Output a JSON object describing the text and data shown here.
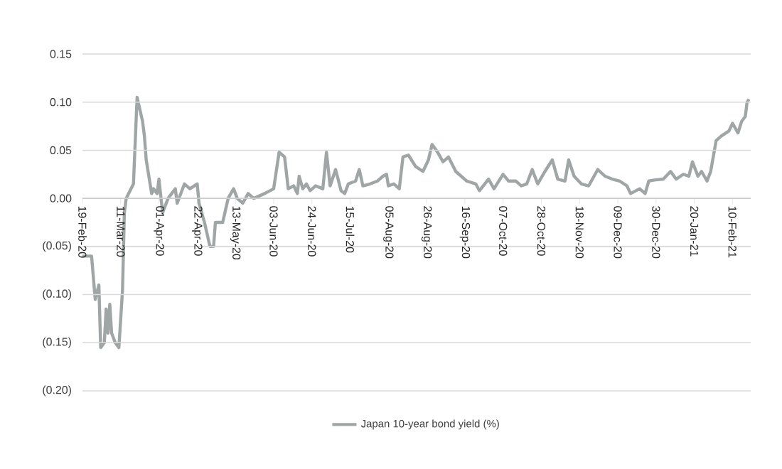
{
  "chart_data": {
    "type": "line",
    "x": [
      "2020-02-19",
      "2020-02-24",
      "2020-02-26",
      "2020-02-28",
      "2020-02-29",
      "2020-03-02",
      "2020-03-03",
      "2020-03-04",
      "2020-03-05",
      "2020-03-06",
      "2020-03-08",
      "2020-03-10",
      "2020-03-12",
      "2020-03-13",
      "2020-03-14",
      "2020-03-18",
      "2020-03-20",
      "2020-03-23",
      "2020-03-24",
      "2020-03-25",
      "2020-03-28",
      "2020-03-29",
      "2020-03-31",
      "2020-04-01",
      "2020-04-03",
      "2020-04-06",
      "2020-04-10",
      "2020-04-11",
      "2020-04-15",
      "2020-04-18",
      "2020-04-22",
      "2020-04-23",
      "2020-04-26",
      "2020-04-29",
      "2020-05-01",
      "2020-05-02",
      "2020-05-06",
      "2020-05-09",
      "2020-05-12",
      "2020-05-14",
      "2020-05-17",
      "2020-05-20",
      "2020-05-23",
      "2020-05-29",
      "2020-06-03",
      "2020-06-06",
      "2020-06-09",
      "2020-06-11",
      "2020-06-14",
      "2020-06-16",
      "2020-06-17",
      "2020-06-19",
      "2020-06-21",
      "2020-06-23",
      "2020-06-26",
      "2020-06-30",
      "2020-07-02",
      "2020-07-04",
      "2020-07-07",
      "2020-07-10",
      "2020-07-12",
      "2020-07-14",
      "2020-07-18",
      "2020-07-20",
      "2020-07-22",
      "2020-07-26",
      "2020-07-30",
      "2020-08-02",
      "2020-08-04",
      "2020-08-05",
      "2020-08-08",
      "2020-08-11",
      "2020-08-13",
      "2020-08-16",
      "2020-08-20",
      "2020-08-24",
      "2020-08-27",
      "2020-08-29",
      "2020-09-01",
      "2020-09-04",
      "2020-09-07",
      "2020-09-11",
      "2020-09-17",
      "2020-09-22",
      "2020-09-24",
      "2020-09-29",
      "2020-10-02",
      "2020-10-07",
      "2020-10-10",
      "2020-10-14",
      "2020-10-17",
      "2020-10-20",
      "2020-10-23",
      "2020-10-26",
      "2020-10-30",
      "2020-11-03",
      "2020-11-06",
      "2020-11-10",
      "2020-11-12",
      "2020-11-15",
      "2020-11-19",
      "2020-11-23",
      "2020-11-28",
      "2020-12-02",
      "2020-12-06",
      "2020-12-10",
      "2020-12-14",
      "2020-12-16",
      "2020-12-21",
      "2020-12-24",
      "2020-12-26",
      "2020-12-29",
      "2021-01-03",
      "2021-01-07",
      "2021-01-10",
      "2021-01-14",
      "2021-01-17",
      "2021-01-19",
      "2021-01-22",
      "2021-01-24",
      "2021-01-27",
      "2021-01-29",
      "2021-02-01",
      "2021-02-04",
      "2021-02-08",
      "2021-02-10",
      "2021-02-13",
      "2021-02-15",
      "2021-02-17",
      "2021-02-18",
      "2021-02-19"
    ],
    "series": [
      {
        "name": "Japan 10-year bond yield (%)",
        "color": "#a0a6a6",
        "values": [
          -0.06,
          -0.06,
          -0.105,
          -0.09,
          -0.155,
          -0.15,
          -0.115,
          -0.14,
          -0.11,
          -0.14,
          -0.15,
          -0.155,
          -0.095,
          -0.015,
          0.0,
          0.015,
          0.105,
          0.08,
          0.065,
          0.04,
          0.005,
          0.01,
          0.005,
          0.02,
          -0.015,
          0.0,
          0.01,
          -0.005,
          0.015,
          0.01,
          0.015,
          -0.005,
          -0.025,
          -0.05,
          -0.05,
          -0.025,
          -0.025,
          0.0,
          0.01,
          0.0,
          -0.005,
          0.005,
          0.0,
          0.005,
          0.01,
          0.048,
          0.043,
          0.01,
          0.013,
          0.005,
          0.023,
          0.01,
          0.015,
          0.008,
          0.013,
          0.01,
          0.048,
          0.013,
          0.03,
          0.008,
          0.005,
          0.015,
          0.018,
          0.03,
          0.013,
          0.015,
          0.018,
          0.023,
          0.025,
          0.013,
          0.015,
          0.01,
          0.043,
          0.045,
          0.033,
          0.028,
          0.04,
          0.056,
          0.048,
          0.038,
          0.043,
          0.028,
          0.018,
          0.015,
          0.008,
          0.02,
          0.01,
          0.025,
          0.018,
          0.018,
          0.013,
          0.015,
          0.03,
          0.015,
          0.028,
          0.04,
          0.02,
          0.018,
          0.04,
          0.023,
          0.015,
          0.013,
          0.03,
          0.023,
          0.02,
          0.018,
          0.013,
          0.005,
          0.01,
          0.005,
          0.018,
          0.019,
          0.02,
          0.028,
          0.02,
          0.025,
          0.023,
          0.038,
          0.023,
          0.028,
          0.018,
          0.028,
          0.06,
          0.065,
          0.07,
          0.078,
          0.068,
          0.08,
          0.085,
          0.1,
          0.103
        ]
      }
    ],
    "xlim": [
      "2020-02-19",
      "2021-02-20"
    ],
    "xticks": [
      {
        "value": "2020-02-19",
        "label": "19-Feb-20"
      },
      {
        "value": "2020-03-11",
        "label": "11-Mar-20"
      },
      {
        "value": "2020-04-01",
        "label": "01-Apr-20"
      },
      {
        "value": "2020-04-22",
        "label": "22-Apr-20"
      },
      {
        "value": "2020-05-13",
        "label": "13-May-20"
      },
      {
        "value": "2020-06-03",
        "label": "03-Jun-20"
      },
      {
        "value": "2020-06-24",
        "label": "24-Jun-20"
      },
      {
        "value": "2020-07-15",
        "label": "15-Jul-20"
      },
      {
        "value": "2020-08-05",
        "label": "05-Aug-20"
      },
      {
        "value": "2020-08-26",
        "label": "26-Aug-20"
      },
      {
        "value": "2020-09-16",
        "label": "16-Sep-20"
      },
      {
        "value": "2020-10-07",
        "label": "07-Oct-20"
      },
      {
        "value": "2020-10-28",
        "label": "28-Oct-20"
      },
      {
        "value": "2020-11-18",
        "label": "18-Nov-20"
      },
      {
        "value": "2020-12-09",
        "label": "09-Dec-20"
      },
      {
        "value": "2020-12-30",
        "label": "30-Dec-20"
      },
      {
        "value": "2021-01-20",
        "label": "20-Jan-21"
      },
      {
        "value": "2021-02-10",
        "label": "10-Feb-21"
      }
    ],
    "ylim": [
      -0.2,
      0.15
    ],
    "yticks": [
      {
        "value": -0.2,
        "label": "(0.20)"
      },
      {
        "value": -0.15,
        "label": "(0.15)"
      },
      {
        "value": -0.1,
        "label": "(0.10)"
      },
      {
        "value": -0.05,
        "label": "(0.05)"
      },
      {
        "value": 0,
        "label": "0.00"
      },
      {
        "value": 0.05,
        "label": "0.05"
      },
      {
        "value": 0.1,
        "label": "0.10"
      },
      {
        "value": 0.15,
        "label": "0.15"
      }
    ],
    "grid": "y",
    "legend": "bottom"
  }
}
